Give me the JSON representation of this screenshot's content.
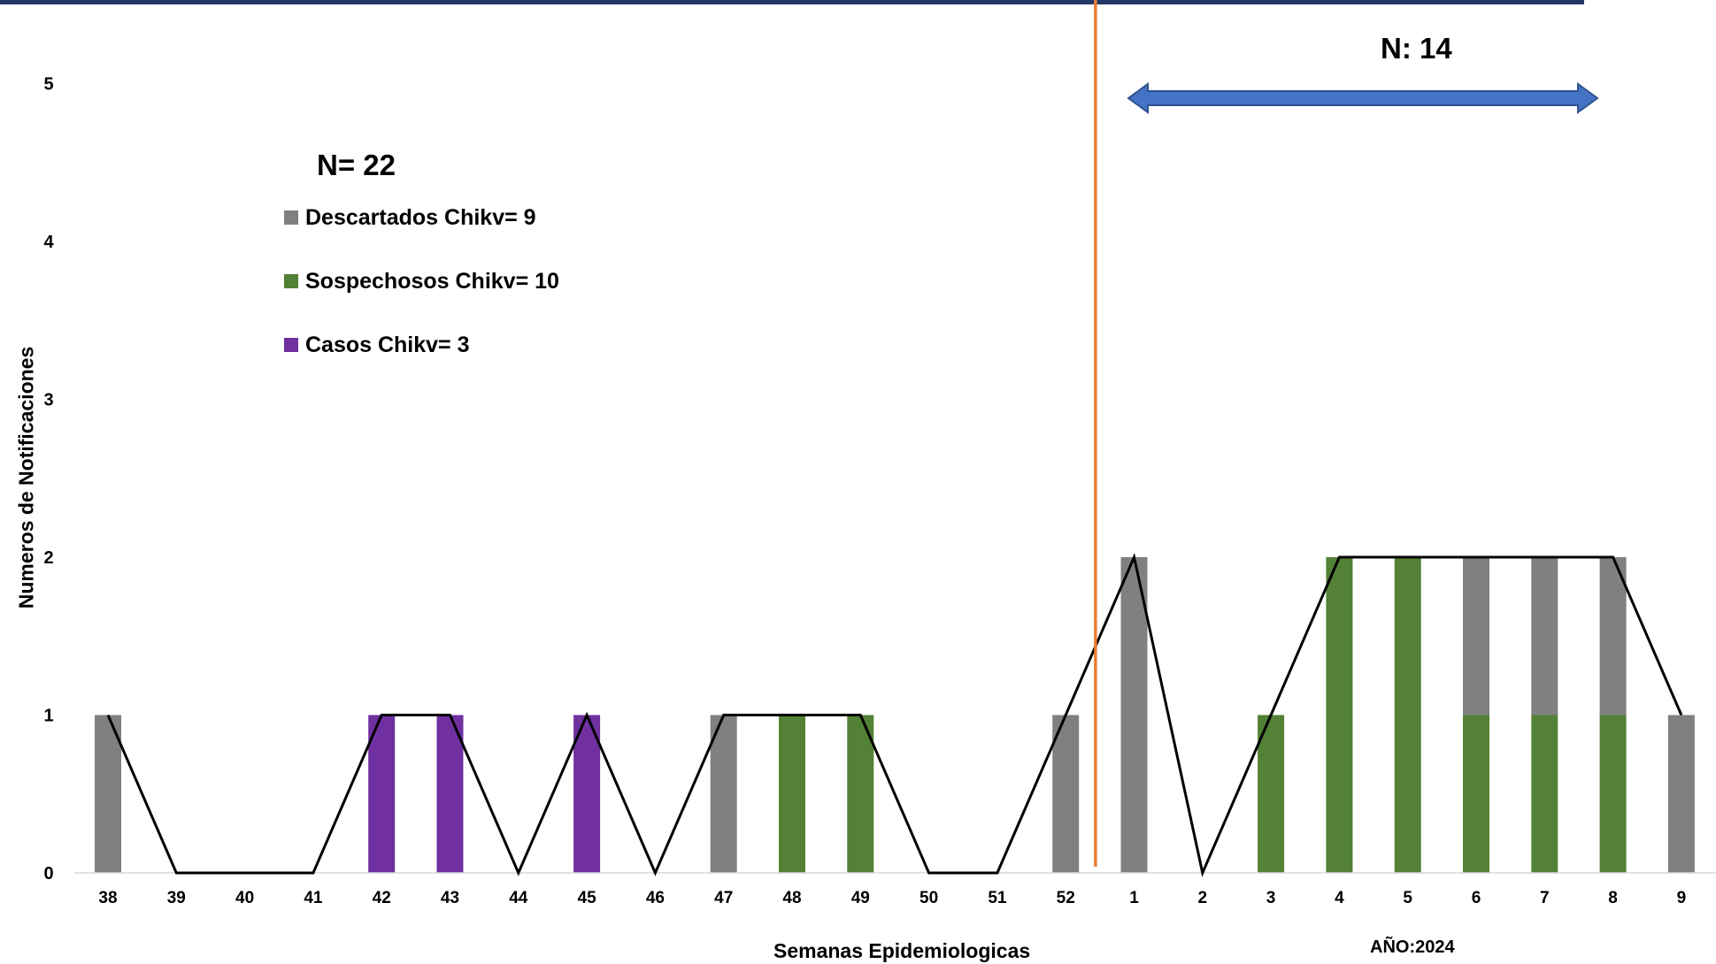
{
  "colors": {
    "descartados": "#808080",
    "sospechosos": "#538135",
    "casos": "#7030A0",
    "trend_line": "#000000",
    "divider_line": "#ED7D31",
    "arrow": "#4472C4",
    "top_border": "#1F3864"
  },
  "annotations": {
    "n_total": "N= 22",
    "n_2024": "N: 14",
    "year": "AÑO:2024"
  },
  "chart_data": {
    "type": "bar",
    "stacked": true,
    "xlabel": "Semanas Epidemiologicas",
    "ylabel": "Numeros de Notificaciones",
    "ylim": [
      0,
      5
    ],
    "yticks": [
      0,
      1,
      2,
      3,
      4,
      5
    ],
    "grid": false,
    "categories": [
      "38",
      "39",
      "40",
      "41",
      "42",
      "43",
      "44",
      "45",
      "46",
      "47",
      "48",
      "49",
      "50",
      "51",
      "52",
      "1",
      "2",
      "3",
      "4",
      "5",
      "6",
      "7",
      "8",
      "9"
    ],
    "series": [
      {
        "name": "Sospechosos Chikv= 10",
        "key": "sospechosos",
        "values": [
          0,
          0,
          0,
          0,
          0,
          0,
          0,
          0,
          0,
          0,
          1,
          1,
          0,
          0,
          0,
          0,
          0,
          1,
          2,
          2,
          1,
          1,
          1,
          0
        ]
      },
      {
        "name": "Casos Chikv= 3",
        "key": "casos",
        "values": [
          0,
          0,
          0,
          0,
          1,
          1,
          0,
          1,
          0,
          0,
          0,
          0,
          0,
          0,
          0,
          0,
          0,
          0,
          0,
          0,
          0,
          0,
          0,
          0
        ]
      },
      {
        "name": "Descartados Chikv= 9",
        "key": "descartados",
        "values": [
          1,
          0,
          0,
          0,
          0,
          0,
          0,
          0,
          0,
          1,
          0,
          0,
          0,
          0,
          1,
          2,
          0,
          0,
          0,
          0,
          1,
          1,
          1,
          1
        ]
      }
    ],
    "total_line": [
      1,
      0,
      0,
      0,
      1,
      1,
      0,
      1,
      0,
      1,
      1,
      1,
      0,
      0,
      1,
      2,
      0,
      1,
      2,
      2,
      2,
      2,
      2,
      1
    ],
    "legend": [
      {
        "label": "Descartados Chikv= 9",
        "key": "descartados"
      },
      {
        "label": "Sospechosos Chikv= 10",
        "key": "sospechosos"
      },
      {
        "label": "Casos Chikv= 3",
        "key": "casos"
      }
    ],
    "legend_position": "upper-left"
  }
}
